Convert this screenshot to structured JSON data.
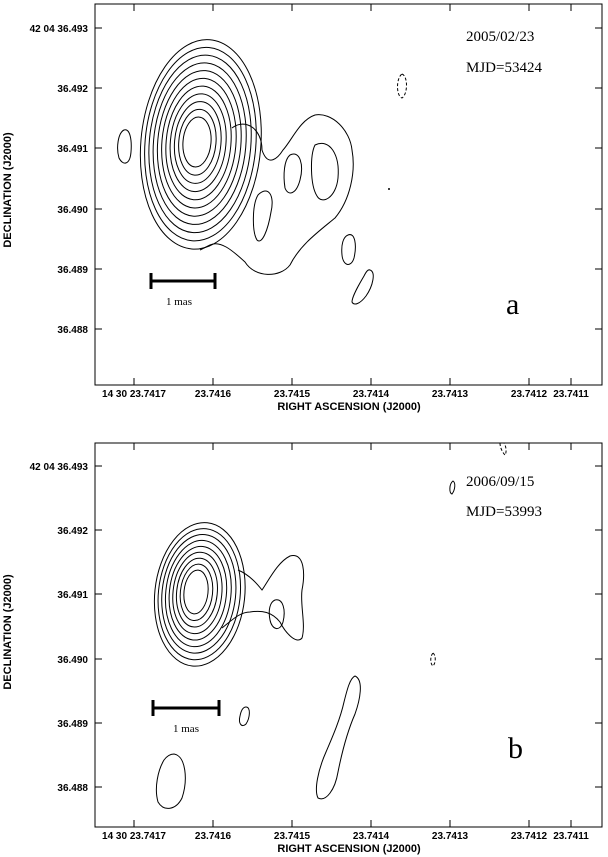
{
  "chart_data": [
    {
      "type": "contour",
      "panel_label": "a",
      "annotation_lines": [
        "2005/02/23",
        "MJD=53424"
      ],
      "scale_bar_label": "1 mas",
      "xlabel": "RIGHT ASCENSION (J2000)",
      "ylabel": "DECLINATION (J2000)",
      "x_tick_labels": [
        "14 30 23.7417",
        "23.7416",
        "23.7415",
        "23.7414",
        "23.7413",
        "23.7412",
        "23.7411"
      ],
      "y_tick_labels": [
        "42 04 36.493",
        "36.492",
        "36.491",
        "36.490",
        "36.489",
        "36.488"
      ],
      "core": {
        "ra": 23.74156,
        "dec": 36.4911,
        "levels": 11
      },
      "components": [
        {
          "shape": "jet-envelope"
        },
        {
          "ra": 23.74135,
          "dec": 36.4906,
          "shape": "closed"
        },
        {
          "ra": 23.74148,
          "dec": 36.4906,
          "shape": "closed"
        },
        {
          "ra": 23.74172,
          "dec": 36.491,
          "shape": "closed"
        },
        {
          "ra": 23.74137,
          "dec": 36.4891,
          "shape": "closed"
        },
        {
          "ra": 23.74134,
          "dec": 36.4886,
          "shape": "closed"
        },
        {
          "ra": 23.74127,
          "dec": 36.4921,
          "shape": "dashed"
        }
      ]
    },
    {
      "type": "contour",
      "panel_label": "b",
      "annotation_lines": [
        "2006/09/15",
        "MJD=53993"
      ],
      "scale_bar_label": "1 mas",
      "xlabel": "RIGHT ASCENSION (J2000)",
      "ylabel": "DECLINATION (J2000)",
      "x_tick_labels": [
        "14 30 23.7417",
        "23.7416",
        "23.7415",
        "23.7414",
        "23.7413",
        "23.7412",
        "23.7411"
      ],
      "y_tick_labels": [
        "42 04 36.493",
        "36.492",
        "36.491",
        "36.490",
        "36.489",
        "36.488"
      ],
      "core": {
        "ra": 23.74156,
        "dec": 36.491,
        "levels": 9
      },
      "components": [
        {
          "shape": "jet-envelope"
        },
        {
          "ra": 23.74148,
          "dec": 36.4908,
          "shape": "closed"
        },
        {
          "ra": 23.74137,
          "dec": 36.4886,
          "shape": "closed"
        },
        {
          "ra": 23.74157,
          "dec": 36.488,
          "shape": "closed"
        },
        {
          "ra": 23.74145,
          "dec": 36.4889,
          "shape": "closed"
        },
        {
          "ra": 23.74127,
          "dec": 36.4927,
          "shape": "closed"
        },
        {
          "ra": 23.7413,
          "dec": 36.49,
          "shape": "dashed"
        },
        {
          "ra": 23.7412,
          "dec": 36.4932,
          "shape": "dashed"
        }
      ]
    }
  ]
}
